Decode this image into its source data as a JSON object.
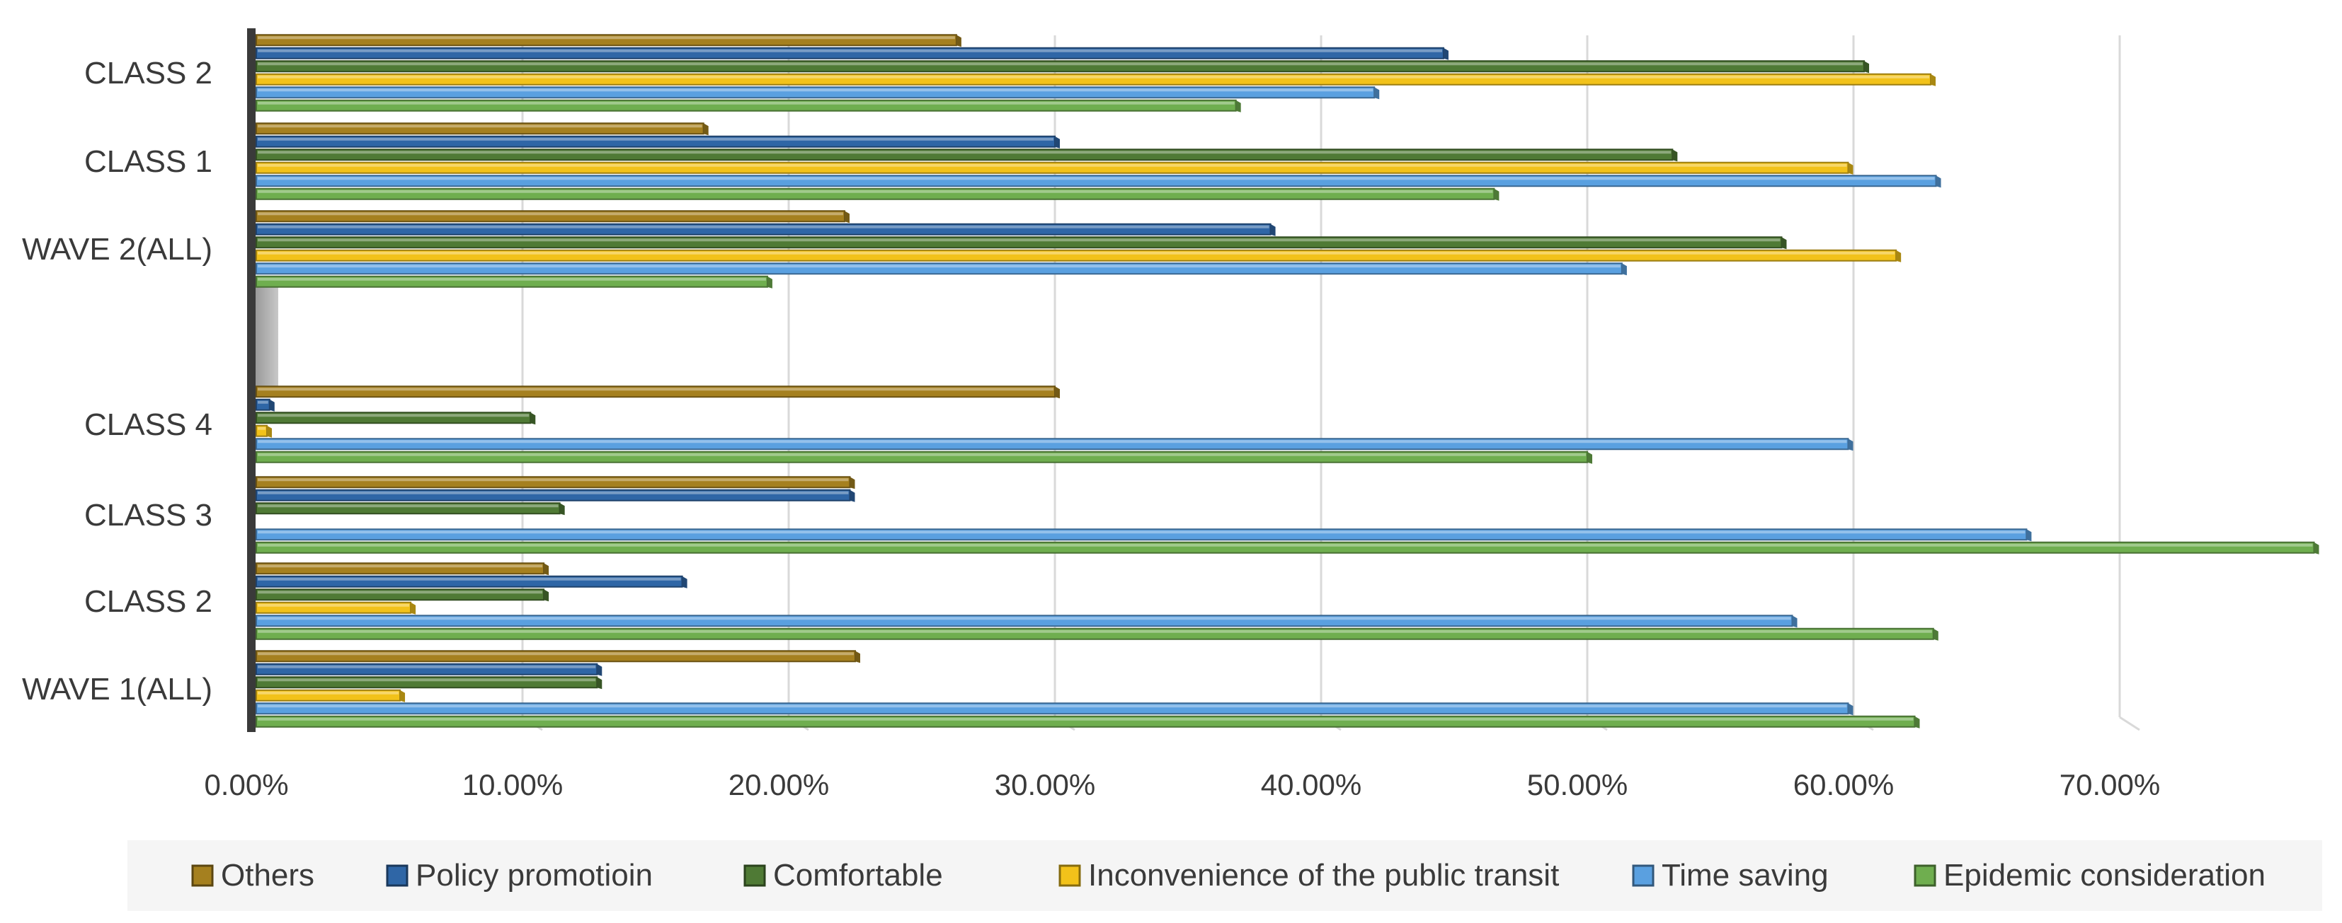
{
  "chart_data": {
    "type": "bar",
    "orientation": "horizontal",
    "categories": [
      "WAVE 1(ALL)",
      "CLASS 2",
      "CLASS 3",
      "CLASS 4",
      "",
      "WAVE 2(ALL)",
      "CLASS 1",
      "CLASS 2"
    ],
    "series": [
      {
        "name": "Epidemic consideration",
        "color": "#6fae4f",
        "values": [
          62.3,
          63.0,
          77.3,
          50.0,
          null,
          19.2,
          46.5,
          36.8
        ]
      },
      {
        "name": "Time saving",
        "color": "#5aa0e0",
        "values": [
          59.8,
          57.7,
          66.5,
          59.8,
          null,
          51.3,
          63.1,
          42.0
        ]
      },
      {
        "name": "Inconvenience of the public transit",
        "color": "#f2c21a",
        "values": [
          5.4,
          5.8,
          0.0,
          0.4,
          null,
          61.6,
          59.8,
          62.9
        ]
      },
      {
        "name": "Comfortable",
        "color": "#4f7a35",
        "values": [
          12.8,
          10.8,
          11.4,
          10.3,
          null,
          57.3,
          53.2,
          60.4
        ]
      },
      {
        "name": "Policy promotioin",
        "color": "#2f66a6",
        "values": [
          12.8,
          16.0,
          22.3,
          0.5,
          null,
          38.1,
          30.0,
          44.6
        ]
      },
      {
        "name": "Others",
        "color": "#a5801f",
        "values": [
          22.5,
          10.8,
          22.3,
          30.0,
          null,
          22.1,
          16.8,
          26.3
        ]
      }
    ],
    "xlim": [
      0,
      77.5
    ],
    "xticks": [
      "0.00%",
      "10.00%",
      "20.00%",
      "30.00%",
      "40.00%",
      "50.00%",
      "60.00%",
      "70.00%"
    ],
    "legend_position": "bottom",
    "grid": true
  }
}
